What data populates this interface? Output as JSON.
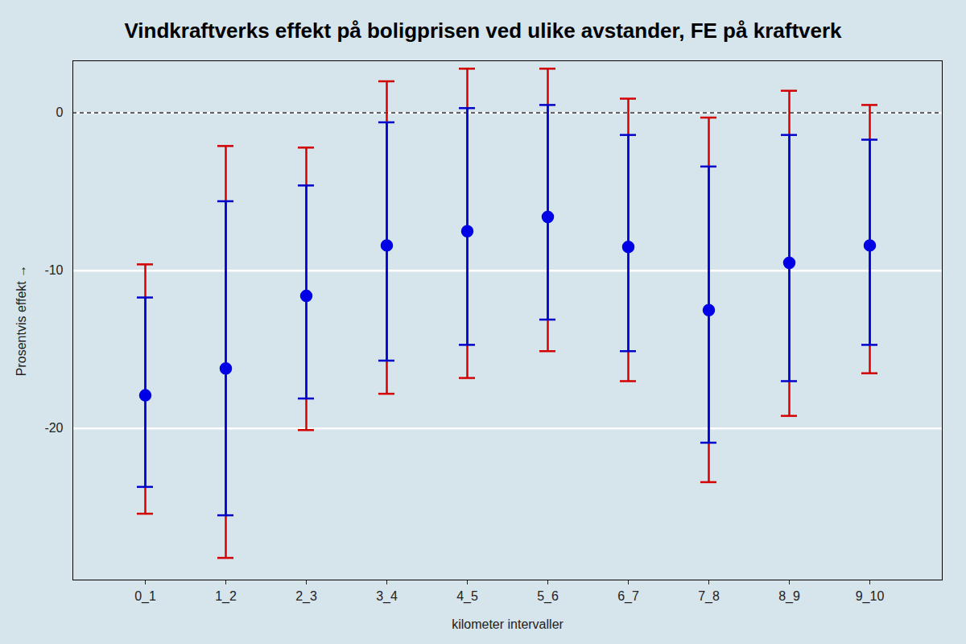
{
  "chart_data": {
    "type": "errorbar",
    "title": "Vindkraftverks effekt på boligprisen ved ulike avstander, FE på kraftverk",
    "x_label": "kilometer intervaller",
    "y_label": "Prosentvis effekt",
    "categories": [
      "0_1",
      "1_2",
      "2_3",
      "3_4",
      "4_5",
      "5_6",
      "6_7",
      "7_8",
      "8_9",
      "9_10"
    ],
    "values": [
      -17.9,
      -16.2,
      -11.6,
      -8.4,
      -7.5,
      -6.6,
      -8.5,
      -12.5,
      -9.5,
      -8.4
    ],
    "color": "#0000e6",
    "marker": "circle",
    "error_bars": [
      {
        "color": "#d40000",
        "lower": [
          -25.4,
          -28.2,
          -20.1,
          -17.8,
          -16.8,
          -15.1,
          -17.0,
          -23.4,
          -19.2,
          -16.5
        ],
        "upper": [
          -9.6,
          -2.1,
          -2.2,
          2.0,
          2.8,
          2.8,
          0.9,
          -0.3,
          1.4,
          0.5
        ]
      },
      {
        "color": "#0000cc",
        "lower": [
          -23.7,
          -25.5,
          -18.1,
          -15.7,
          -14.7,
          -13.1,
          -15.1,
          -20.9,
          -17.0,
          -14.7
        ],
        "upper": [
          -11.7,
          -5.6,
          -4.6,
          -0.6,
          0.3,
          0.5,
          -1.4,
          -3.4,
          -1.4,
          -1.7
        ]
      }
    ],
    "reference_line": 0,
    "ylim": [
      -29.6,
      3.3
    ],
    "yticks": [
      -20,
      -10,
      0
    ],
    "grid": true
  }
}
